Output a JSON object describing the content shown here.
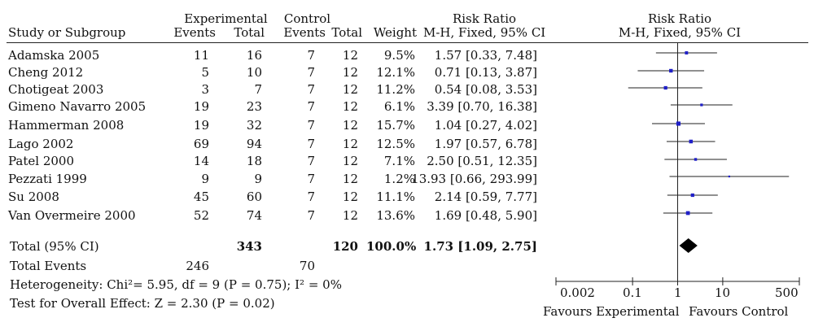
{
  "header": {
    "group_experimental": "Experimental",
    "group_control": "Control",
    "group_rr": "Risk Ratio",
    "plot_title": "Risk Ratio",
    "col_study": "Study or Subgroup",
    "col_e_events": "Events",
    "col_e_total": "Total",
    "col_c_events": "Events",
    "col_c_total": "Total",
    "col_weight": "Weight",
    "col_rr": "M-H, Fixed, 95% CI",
    "plot_subtitle": "M-H, Fixed, 95% CI"
  },
  "studies": [
    {
      "name": "Adamska 2005",
      "e_events": "11",
      "e_total": "16",
      "c_events": "7",
      "c_total": "12",
      "weight": "9.5%",
      "ci_text": "1.57 [0.33, 7.48]"
    },
    {
      "name": "Cheng 2012",
      "e_events": "5",
      "e_total": "10",
      "c_events": "7",
      "c_total": "12",
      "weight": "12.1%",
      "ci_text": "0.71 [0.13, 3.87]"
    },
    {
      "name": "Chotigeat 2003",
      "e_events": "3",
      "e_total": "7",
      "c_events": "7",
      "c_total": "12",
      "weight": "11.2%",
      "ci_text": "0.54 [0.08, 3.53]"
    },
    {
      "name": "Gimeno Navarro 2005",
      "e_events": "19",
      "e_total": "23",
      "c_events": "7",
      "c_total": "12",
      "weight": "6.1%",
      "ci_text": "3.39 [0.70, 16.38]"
    },
    {
      "name": "Hammerman 2008",
      "e_events": "19",
      "e_total": "32",
      "c_events": "7",
      "c_total": "12",
      "weight": "15.7%",
      "ci_text": "1.04 [0.27, 4.02]"
    },
    {
      "name": "Lago 2002",
      "e_events": "69",
      "e_total": "94",
      "c_events": "7",
      "c_total": "12",
      "weight": "12.5%",
      "ci_text": "1.97 [0.57, 6.78]"
    },
    {
      "name": "Patel 2000",
      "e_events": "14",
      "e_total": "18",
      "c_events": "7",
      "c_total": "12",
      "weight": "7.1%",
      "ci_text": "2.50 [0.51, 12.35]"
    },
    {
      "name": "Pezzati 1999",
      "e_events": "9",
      "e_total": "9",
      "c_events": "7",
      "c_total": "12",
      "weight": "1.2%",
      "ci_text": "13.93 [0.66, 293.99]"
    },
    {
      "name": "Su 2008",
      "e_events": "45",
      "e_total": "60",
      "c_events": "7",
      "c_total": "12",
      "weight": "11.1%",
      "ci_text": "2.14 [0.59, 7.77]"
    },
    {
      "name": "Van Overmeire 2000",
      "e_events": "52",
      "e_total": "74",
      "c_events": "7",
      "c_total": "12",
      "weight": "13.6%",
      "ci_text": "1.69 [0.48, 5.90]"
    }
  ],
  "total": {
    "label": "Total (95% CI)",
    "e_total": "343",
    "c_total": "120",
    "weight": "100.0%",
    "ci_text": "1.73 [1.09, 2.75]"
  },
  "total_events": {
    "label": "Total Events",
    "e": "246",
    "c": "70"
  },
  "heterogeneity": "Heterogeneity: Chi²= 5.95, df = 9 (P = 0.75); I² = 0%",
  "overall_effect": "Test for Overall Effect: Z = 2.30 (P = 0.02)",
  "axis": {
    "ticks": [
      "0.002",
      "0.1",
      "1",
      "10",
      "500"
    ],
    "label_left": "Favours Experimental",
    "label_right": "Favours Control"
  },
  "chart_data": {
    "type": "scatter",
    "scale": "log",
    "xlim": [
      0.002,
      500
    ],
    "ticks": [
      0.002,
      0.1,
      1,
      10,
      500
    ],
    "reference_line": 1,
    "marker_color": "#1f1fc8",
    "diamond_color": "#000000",
    "studies": [
      {
        "name": "Adamska 2005",
        "rr": 1.57,
        "lo": 0.33,
        "hi": 7.48,
        "weight": 9.5
      },
      {
        "name": "Cheng 2012",
        "rr": 0.71,
        "lo": 0.13,
        "hi": 3.87,
        "weight": 12.1
      },
      {
        "name": "Chotigeat 2003",
        "rr": 0.54,
        "lo": 0.08,
        "hi": 3.53,
        "weight": 11.2
      },
      {
        "name": "Gimeno Navarro 2005",
        "rr": 3.39,
        "lo": 0.7,
        "hi": 16.38,
        "weight": 6.1
      },
      {
        "name": "Hammerman 2008",
        "rr": 1.04,
        "lo": 0.27,
        "hi": 4.02,
        "weight": 15.7
      },
      {
        "name": "Lago 2002",
        "rr": 1.97,
        "lo": 0.57,
        "hi": 6.78,
        "weight": 12.5
      },
      {
        "name": "Patel 2000",
        "rr": 2.5,
        "lo": 0.51,
        "hi": 12.35,
        "weight": 7.1
      },
      {
        "name": "Pezzati 1999",
        "rr": 13.93,
        "lo": 0.66,
        "hi": 293.99,
        "weight": 1.2
      },
      {
        "name": "Su 2008",
        "rr": 2.14,
        "lo": 0.59,
        "hi": 7.77,
        "weight": 11.1
      },
      {
        "name": "Van Overmeire 2000",
        "rr": 1.69,
        "lo": 0.48,
        "hi": 5.9,
        "weight": 13.6
      }
    ],
    "pooled": {
      "rr": 1.73,
      "lo": 1.09,
      "hi": 2.75
    }
  }
}
